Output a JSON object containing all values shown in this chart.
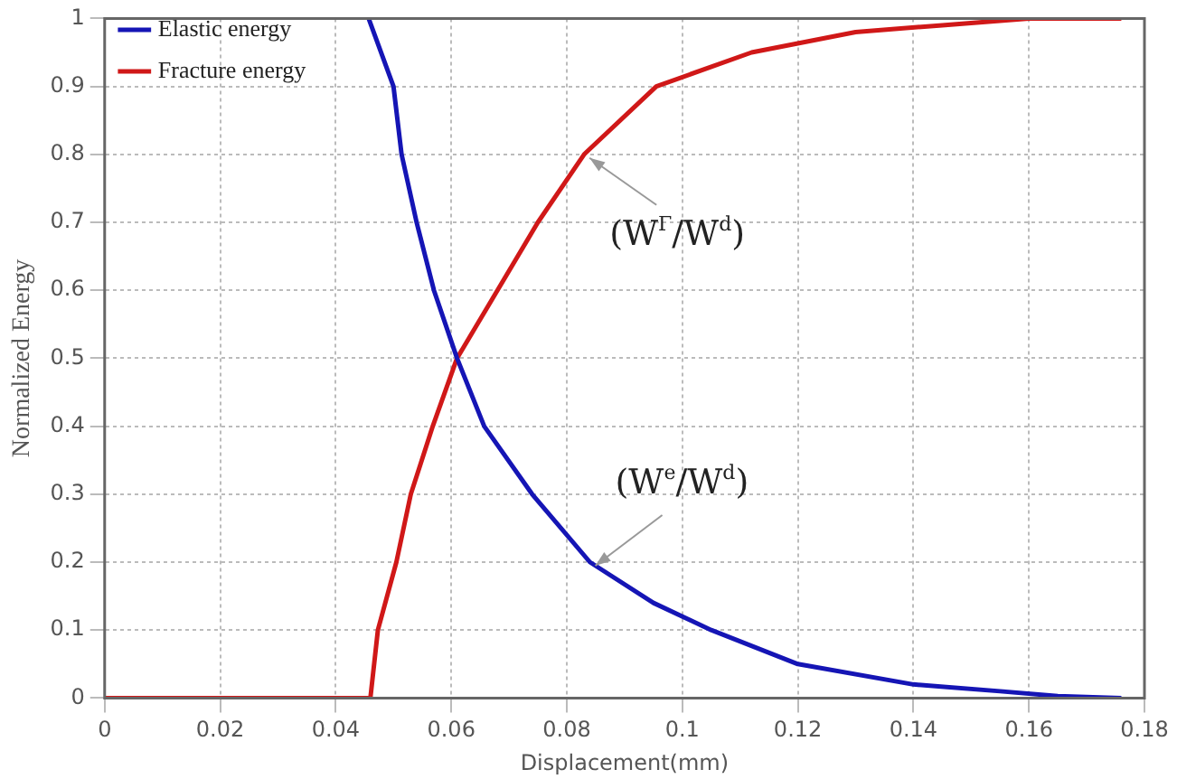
{
  "chart_data": {
    "type": "line",
    "xlabel": "Displacement(mm)",
    "ylabel": "Normalized Energy",
    "xlim": [
      0,
      0.18
    ],
    "xticks": [
      0,
      0.02,
      0.04,
      0.06,
      0.08,
      0.1,
      0.12,
      0.14,
      0.16,
      0.18
    ],
    "ylim": [
      0,
      1
    ],
    "yticks": [
      0,
      0.1,
      0.2,
      0.3,
      0.4,
      0.5,
      0.6,
      0.7,
      0.8,
      0.9,
      1
    ],
    "grid": true,
    "legend": "top left",
    "marker": "none",
    "line_style": "solid",
    "series": [
      {
        "name": "Elastic energy",
        "color": "#1515b5",
        "x": [
          0.0457,
          0.05,
          0.0514,
          0.054,
          0.057,
          0.061,
          0.0657,
          0.074,
          0.084,
          0.095,
          0.105,
          0.12,
          0.14,
          0.155,
          0.165,
          0.176
        ],
        "values": [
          1,
          0.9,
          0.8,
          0.7,
          0.6,
          0.5,
          0.4,
          0.3,
          0.2,
          0.14,
          0.1,
          0.05,
          0.02,
          0.01,
          0.003,
          0
        ]
      },
      {
        "name": "Fracture energy",
        "color": "#d01818",
        "x": [
          0,
          0.046,
          0.0473,
          0.0505,
          0.053,
          0.0568,
          0.061,
          0.068,
          0.075,
          0.083,
          0.0955,
          0.112,
          0.13,
          0.145,
          0.16,
          0.176
        ],
        "values": [
          0,
          0,
          0.1,
          0.2,
          0.3,
          0.4,
          0.5,
          0.6,
          0.7,
          0.8,
          0.9,
          0.95,
          0.98,
          0.99,
          1,
          1
        ]
      }
    ],
    "annotations": [
      {
        "text": "(W$^{Γ}$/W$^{d}$)",
        "x": 0.083,
        "y": 0.8
      },
      {
        "text": "(W$^{e}$/W$^{d}$)",
        "x": 0.084,
        "y": 0.2
      }
    ]
  }
}
